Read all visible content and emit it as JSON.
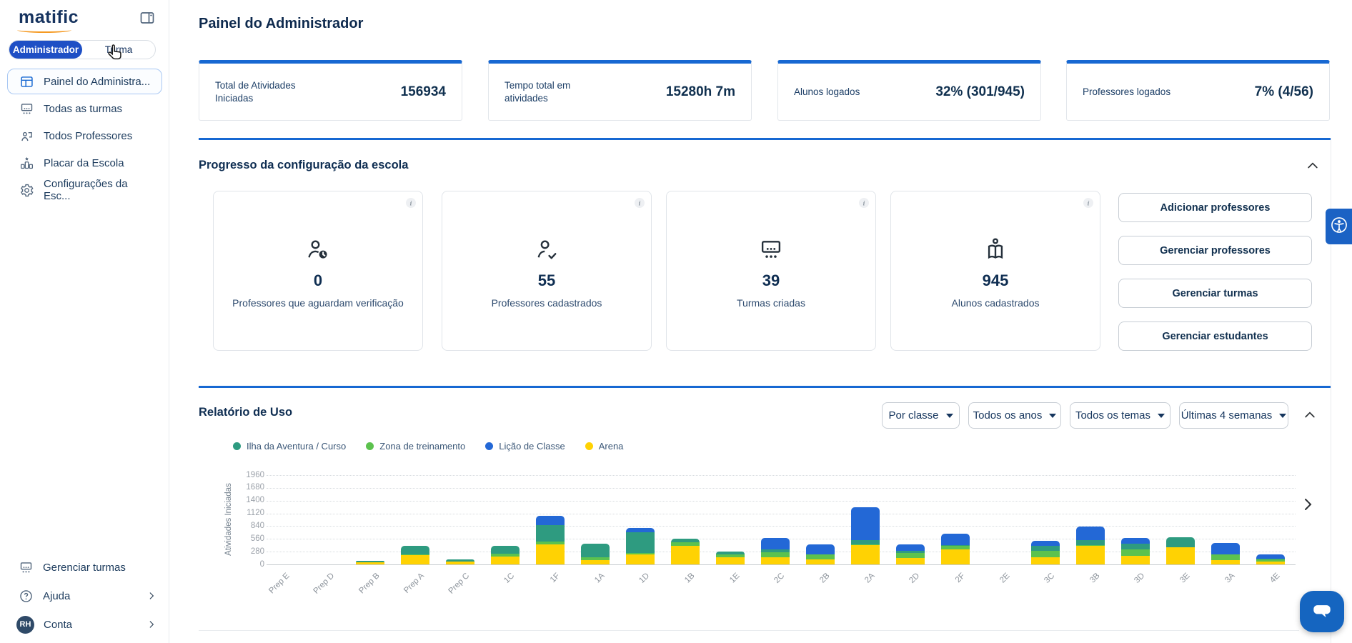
{
  "brand": {
    "logo_text": "matific"
  },
  "sidebar": {
    "role_toggle": {
      "options": [
        "Administrador",
        "Turma"
      ],
      "selected": "Administrador"
    },
    "items": [
      {
        "label": "Painel do Administra...",
        "icon": "dashboard-icon",
        "active": true
      },
      {
        "label": "Todas as turmas",
        "icon": "classes-icon",
        "active": false
      },
      {
        "label": "Todos Professores",
        "icon": "teachers-icon",
        "active": false
      },
      {
        "label": "Placar da Escola",
        "icon": "scoreboard-icon",
        "active": false
      },
      {
        "label": "Configurações da Esc...",
        "icon": "settings-icon",
        "active": false
      }
    ],
    "footer_items": [
      {
        "label": "Gerenciar turmas",
        "icon": "classes-icon",
        "chevron": false
      },
      {
        "label": "Ajuda",
        "icon": "help-icon",
        "chevron": true
      },
      {
        "label": "Conta",
        "avatar": "RH",
        "chevron": true
      }
    ]
  },
  "header": {
    "title": "Painel do Administrador"
  },
  "stat_cards": [
    {
      "label": "Total de Atividades Iniciadas",
      "value": "156934"
    },
    {
      "label": "Tempo total em atividades",
      "value": "15280h 7m"
    },
    {
      "label": "Alunos logados",
      "value": "32% (301/945)"
    },
    {
      "label": "Professores logados",
      "value": "7% (4/56)"
    }
  ],
  "setup_section": {
    "title": "Progresso da configuração da escola",
    "cards": [
      {
        "value": "0",
        "label": "Professores que aguardam verificação",
        "icon": "teacher-pending-icon"
      },
      {
        "value": "55",
        "label": "Professores cadastrados",
        "icon": "teacher-verified-icon"
      },
      {
        "value": "39",
        "label": "Turmas criadas",
        "icon": "classroom-icon"
      },
      {
        "value": "945",
        "label": "Alunos cadastrados",
        "icon": "student-book-icon"
      }
    ],
    "buttons": [
      "Adicionar professores",
      "Gerenciar professores",
      "Gerenciar turmas",
      "Gerenciar estudantes"
    ]
  },
  "usage_section": {
    "title": "Relatório de Uso",
    "filters": [
      "Por classe",
      "Todos os anos",
      "Todos os temas",
      "Últimas 4 semanas"
    ]
  },
  "chart_data": {
    "type": "bar",
    "stacked": true,
    "title": "Relatório de Uso",
    "xlabel": "",
    "ylabel": "Atividades Iniciadas",
    "ylim": [
      0,
      1960
    ],
    "yticks": [
      0,
      280,
      560,
      840,
      1120,
      1400,
      1680,
      1960
    ],
    "grid": "horizontal-dotted",
    "legend_position": "top-left",
    "legend": [
      {
        "label": "Ilha da Aventura / Curso",
        "color": "#2E9B80"
      },
      {
        "label": "Zona de treinamento",
        "color": "#5CC24E"
      },
      {
        "label": "Lição de Classe",
        "color": "#2368D6"
      },
      {
        "label": "Arena",
        "color": "#FFD203"
      }
    ],
    "categories": [
      "Prep E",
      "Prep D",
      "Prep B",
      "Prep A",
      "Prep C",
      "1C",
      "1F",
      "1A",
      "1D",
      "1B",
      "1E",
      "2C",
      "2B",
      "2A",
      "2D",
      "2F",
      "2E",
      "3C",
      "3B",
      "3D",
      "3E",
      "3A",
      "4E"
    ],
    "series": [
      {
        "name": "Arena",
        "color": "#FFD203",
        "values": [
          0,
          0,
          50,
          200,
          65,
          175,
          440,
          100,
          220,
          415,
          150,
          150,
          115,
          415,
          140,
          330,
          0,
          150,
          405,
          190,
          375,
          90,
          65
        ]
      },
      {
        "name": "Zona de treinamento",
        "color": "#5CC24E",
        "values": [
          0,
          0,
          0,
          20,
          0,
          60,
          60,
          50,
          30,
          75,
          65,
          115,
          100,
          30,
          110,
          80,
          0,
          140,
          25,
          140,
          0,
          125,
          50
        ]
      },
      {
        "name": "Ilha da Aventura / Curso",
        "color": "#2E9B80",
        "values": [
          0,
          0,
          35,
          180,
          45,
          165,
          370,
          310,
          460,
          75,
          60,
          65,
          0,
          85,
          50,
          10,
          0,
          125,
          100,
          120,
          215,
          10,
          10
        ]
      },
      {
        "name": "Lição de Classe",
        "color": "#2368D6",
        "values": [
          0,
          0,
          0,
          0,
          0,
          0,
          195,
          0,
          90,
          0,
          0,
          245,
          225,
          720,
          140,
          260,
          0,
          110,
          300,
          130,
          0,
          240,
          90
        ]
      }
    ]
  },
  "colors": {
    "accent_blue": "#1768D2",
    "toggle_blue": "#1E4FC5",
    "chat_blue": "#1565C0"
  }
}
